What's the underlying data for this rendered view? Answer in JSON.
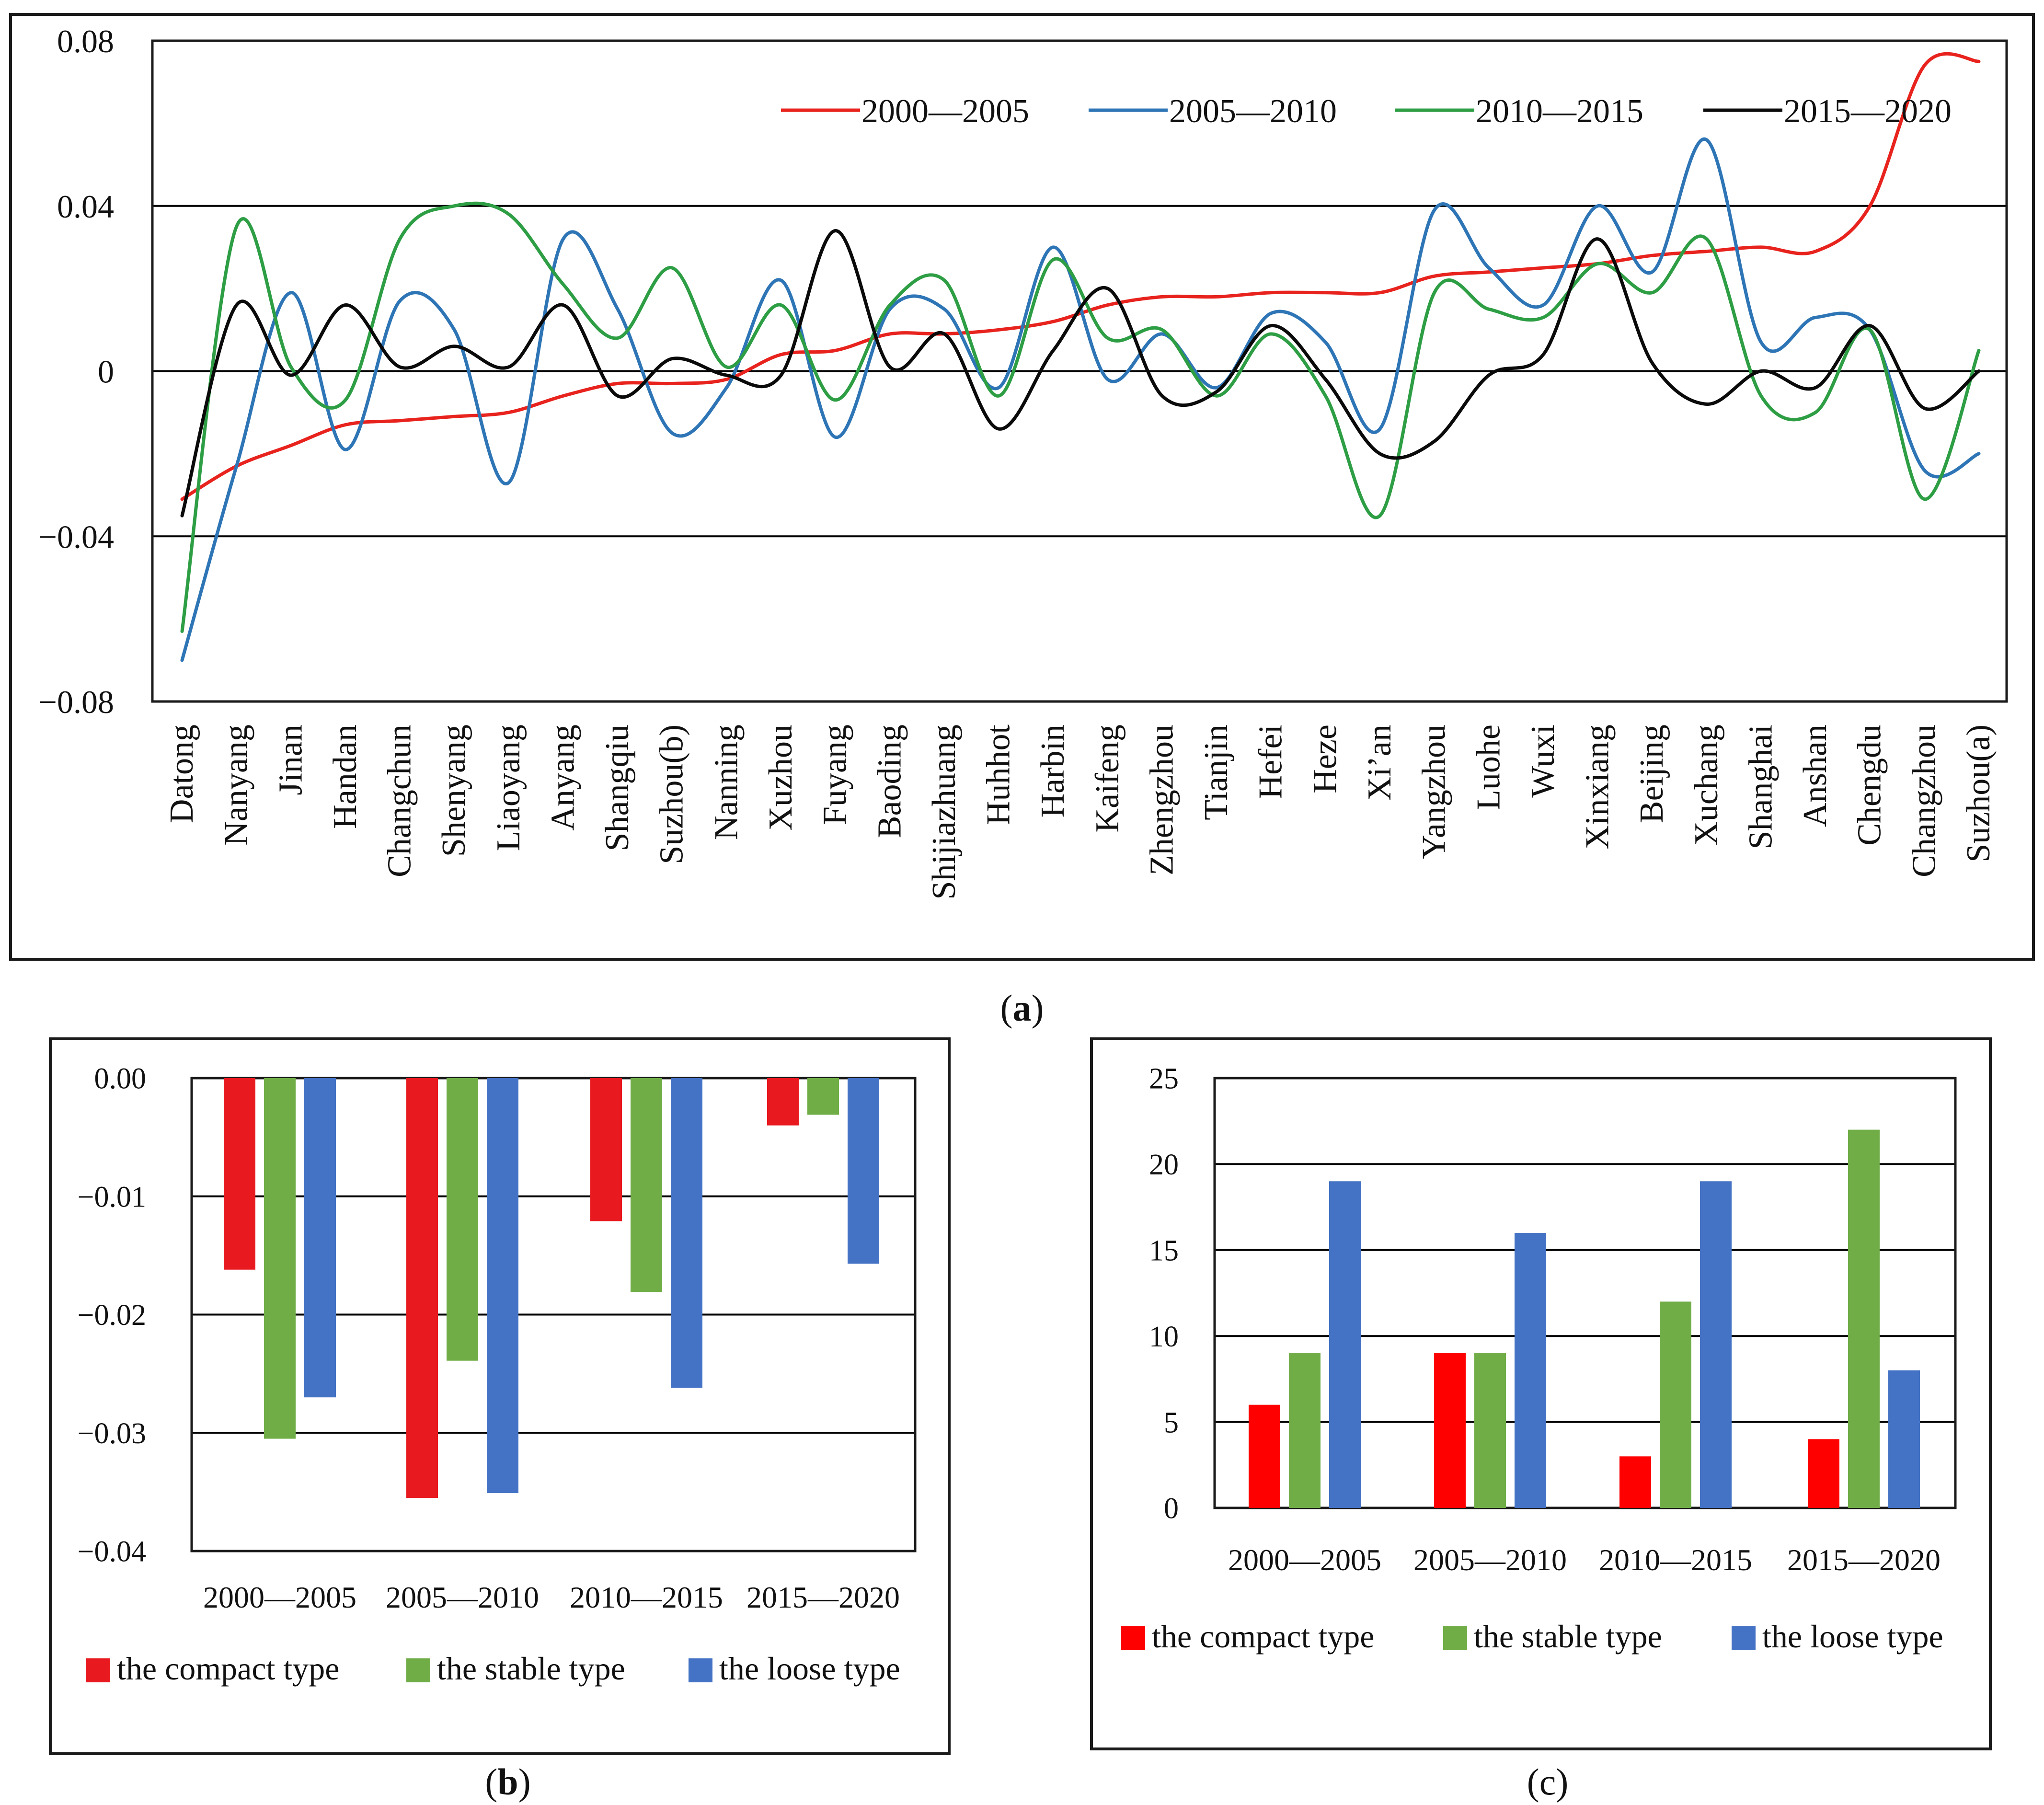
{
  "chart_data": [
    {
      "id": "a",
      "caption": "a",
      "type": "line",
      "categories": [
        "Datong",
        "Nanyang",
        "Jinan",
        "Handan",
        "Changchun",
        "Shenyang",
        "Liaoyang",
        "Anyang",
        "Shangqiu",
        "Suzhou(b)",
        "Nanning",
        "Xuzhou",
        "Fuyang",
        "Baoding",
        "Shijiazhuang",
        "Huhhot",
        "Harbin",
        "Kaifeng",
        "Zhengzhou",
        "Tianjin",
        "Hefei",
        "Heze",
        "Xi’an",
        "Yangzhou",
        "Luohe",
        "Wuxi",
        "Xinxiang",
        "Beijing",
        "Xuchang",
        "Shanghai",
        "Anshan",
        "Chengdu",
        "Changzhou",
        "Suzhou(a)"
      ],
      "ylim": [
        -0.08,
        0.08
      ],
      "yticks": [
        -0.08,
        -0.04,
        0,
        0.04,
        0.08
      ],
      "ytick_labels": [
        "−0.08",
        "−0.04",
        "0",
        "0.04",
        "0.08"
      ],
      "gridlines": [
        -0.04,
        0,
        0.04
      ],
      "legend_position": "top-right",
      "series": [
        {
          "name": "2000—2005",
          "color": "#e8231e",
          "values": [
            -0.031,
            -0.023,
            -0.018,
            -0.013,
            -0.012,
            -0.011,
            -0.01,
            -0.006,
            -0.003,
            -0.003,
            -0.002,
            0.004,
            0.005,
            0.009,
            0.009,
            0.01,
            0.012,
            0.016,
            0.018,
            0.018,
            0.019,
            0.019,
            0.019,
            0.023,
            0.024,
            0.025,
            0.026,
            0.028,
            0.029,
            0.03,
            0.029,
            0.04,
            0.074,
            0.075
          ]
        },
        {
          "name": "2005—2010",
          "color": "#2e75b6",
          "values": [
            -0.07,
            -0.023,
            0.019,
            -0.019,
            0.017,
            0.01,
            -0.027,
            0.032,
            0.015,
            -0.015,
            -0.004,
            0.022,
            -0.016,
            0.015,
            0.015,
            -0.004,
            0.03,
            -0.002,
            0.009,
            -0.004,
            0.014,
            0.007,
            -0.014,
            0.039,
            0.025,
            0.016,
            0.04,
            0.024,
            0.056,
            0.007,
            0.013,
            0.01,
            -0.024,
            -0.02
          ]
        },
        {
          "name": "2010—2015",
          "color": "#2e9e45",
          "values": [
            -0.063,
            0.035,
            0.001,
            -0.007,
            0.032,
            0.04,
            0.038,
            0.021,
            0.008,
            0.025,
            0.001,
            0.016,
            -0.007,
            0.016,
            0.022,
            -0.006,
            0.027,
            0.008,
            0.01,
            -0.006,
            0.009,
            -0.006,
            -0.035,
            0.019,
            0.015,
            0.013,
            0.026,
            0.019,
            0.032,
            -0.006,
            -0.01,
            0.01,
            -0.031,
            0.005
          ]
        },
        {
          "name": "2015—2020",
          "color": "#0a0a0a",
          "values": [
            -0.035,
            0.016,
            -0.001,
            0.016,
            0.001,
            0.006,
            0.001,
            0.016,
            -0.006,
            0.003,
            -0.001,
            -0.001,
            0.034,
            0.001,
            0.009,
            -0.014,
            0.005,
            0.02,
            -0.006,
            -0.005,
            0.011,
            -0.002,
            -0.02,
            -0.017,
            -0.001,
            0.004,
            0.032,
            0.002,
            -0.008,
            0.0,
            -0.004,
            0.011,
            -0.009,
            0.0
          ]
        }
      ]
    },
    {
      "id": "b",
      "caption": "b",
      "type": "bar",
      "categories": [
        "2000—2005",
        "2005—2010",
        "2010—2015",
        "2015—2020"
      ],
      "ylim": [
        -0.04,
        0.0
      ],
      "yticks": [
        0,
        -0.01,
        -0.02,
        -0.03,
        -0.04
      ],
      "ytick_labels": [
        "0.00",
        "−0.01",
        "−0.02",
        "−0.03",
        "−0.04"
      ],
      "gridlines": [
        -0.01,
        -0.02,
        -0.03
      ],
      "legend_position": "bottom",
      "series": [
        {
          "name": "the compact type",
          "color": "#e8191f",
          "values": [
            -0.0162,
            -0.0355,
            -0.0121,
            -0.004
          ]
        },
        {
          "name": "the stable type",
          "color": "#70ad47",
          "values": [
            -0.0305,
            -0.0239,
            -0.0181,
            -0.0031
          ]
        },
        {
          "name": "the loose type",
          "color": "#4472c4",
          "values": [
            -0.027,
            -0.0351,
            -0.0262,
            -0.0157
          ]
        }
      ]
    },
    {
      "id": "c",
      "caption": "c",
      "type": "bar",
      "categories": [
        "2000—2005",
        "2005—2010",
        "2010—2015",
        "2015—2020"
      ],
      "ylim": [
        0,
        25
      ],
      "yticks": [
        0,
        5,
        10,
        15,
        20,
        25
      ],
      "ytick_labels": [
        "0",
        "5",
        "10",
        "15",
        "20",
        "25"
      ],
      "gridlines": [
        5,
        10,
        15,
        20,
        25
      ],
      "legend_position": "bottom",
      "series": [
        {
          "name": "the compact type",
          "color": "#ff0000",
          "values": [
            6,
            9,
            3,
            4
          ]
        },
        {
          "name": "the stable type",
          "color": "#70ad47",
          "values": [
            9,
            9,
            12,
            22
          ]
        },
        {
          "name": "the loose type",
          "color": "#4472c4",
          "values": [
            19,
            16,
            19,
            8
          ]
        }
      ]
    }
  ]
}
